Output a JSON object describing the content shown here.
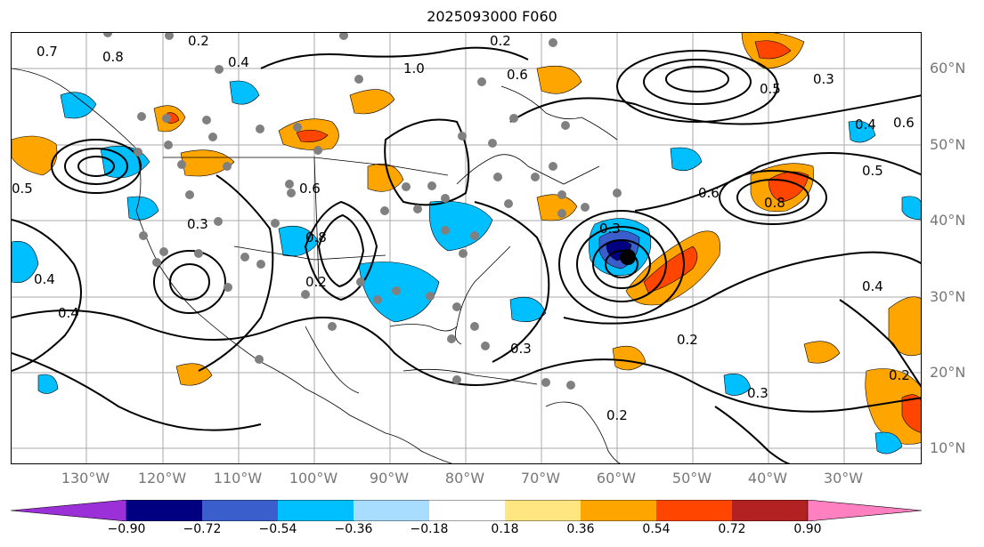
{
  "title": "2025093000 F060",
  "lon_labels": [
    "130°W",
    "120°W",
    "110°W",
    "100°W",
    "90°W",
    "80°W",
    "70°W",
    "60°W",
    "50°W",
    "40°W",
    "30°W"
  ],
  "lat_labels": [
    "60°N",
    "50°N",
    "40°N",
    "30°N",
    "20°N",
    "10°N"
  ],
  "colorbar": {
    "ticks": [
      "−0.90",
      "−0.72",
      "−0.54",
      "−0.36",
      "−0.18",
      "0.18",
      "0.36",
      "0.54",
      "0.72",
      "0.90"
    ],
    "colors": [
      "#9b30d9",
      "#000080",
      "#3a5fcd",
      "#00bfff",
      "#a8ddff",
      "#ffffff",
      "#ffe680",
      "#ffa500",
      "#ff4500",
      "#b22222",
      "#ff80c0"
    ]
  },
  "contour_labels": [
    "0.7",
    "0.2",
    "0.8",
    "0.4",
    "1.0",
    "0.5",
    "0.3",
    "0.6",
    "0.2",
    "0.3",
    "0.5",
    "0.4",
    "0.6",
    "0.8",
    "0.4",
    "0.3",
    "0.2",
    "0.6",
    "0.8",
    "0.2",
    "0.3",
    "0.2",
    "0.4",
    "0.5",
    "0.2",
    "0.4",
    "0.3",
    "0.6"
  ],
  "colors": {
    "contour": "#000000",
    "marker": "#808080",
    "grid": "#aaaaaa",
    "coast": "#000000",
    "storm_center": "#000000"
  },
  "icons": [
    "storm-center-marker",
    "observation-dot"
  ]
}
